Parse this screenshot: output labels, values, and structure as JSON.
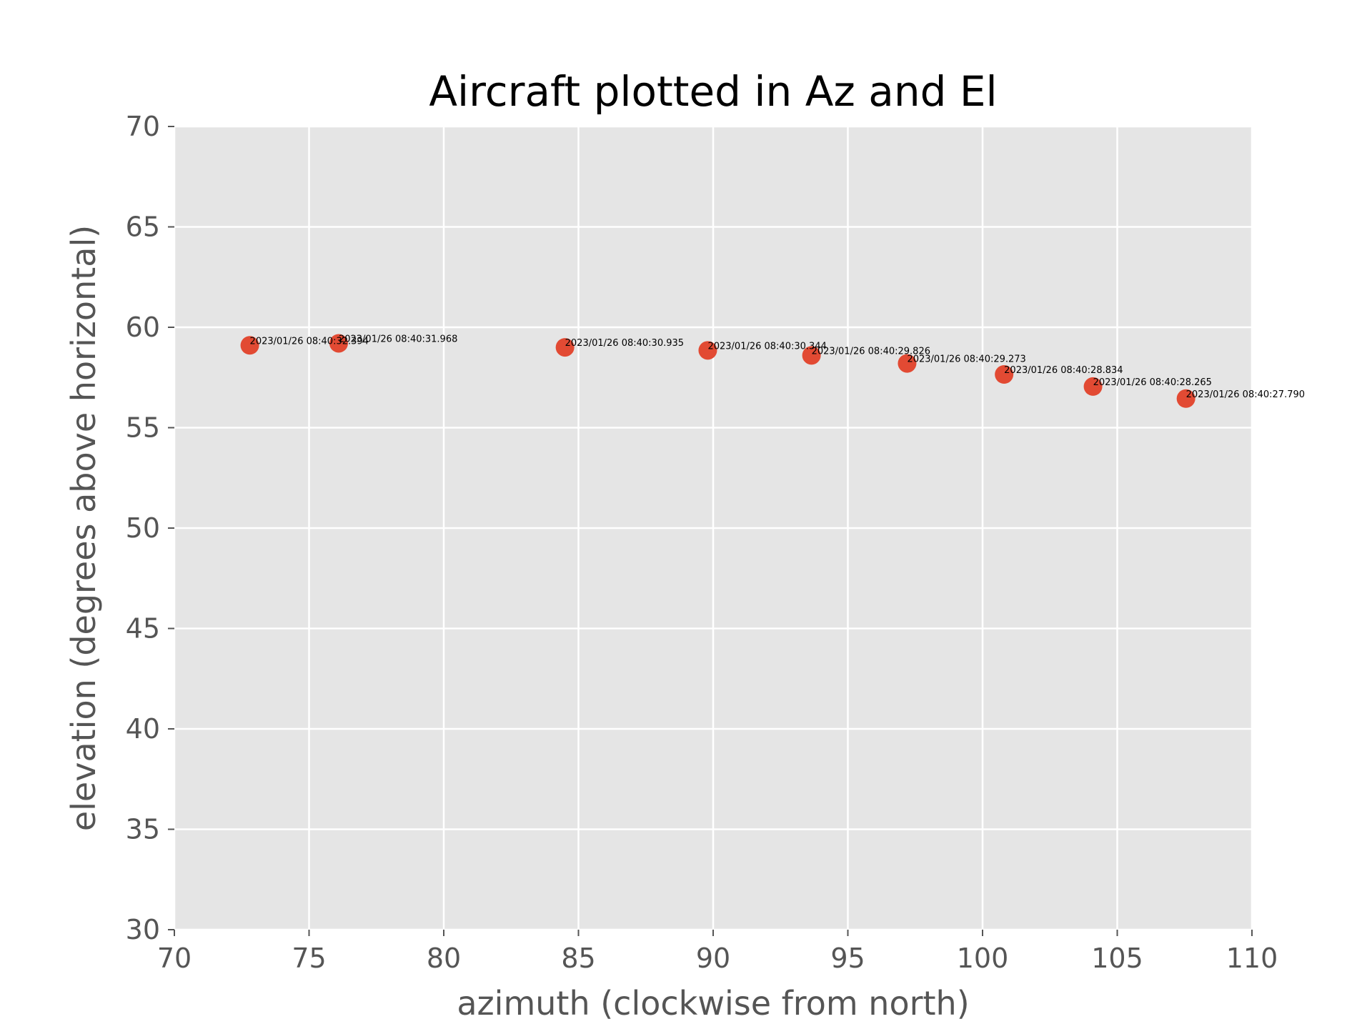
{
  "chart_data": {
    "type": "scatter",
    "title": "Aircraft plotted in Az and El",
    "xlabel": "azimuth (clockwise from north)",
    "ylabel": "elevation (degrees above horizontal)",
    "xlim": [
      70,
      110
    ],
    "ylim": [
      30,
      70
    ],
    "xticks": [
      70,
      75,
      80,
      85,
      90,
      95,
      100,
      105,
      110
    ],
    "yticks": [
      30,
      35,
      40,
      45,
      50,
      55,
      60,
      65,
      70
    ],
    "grid": true,
    "colors": {
      "plot_background": "#e5e5e5",
      "grid": "#ffffff",
      "marker": "#e24a33"
    },
    "points": [
      {
        "x": 72.8,
        "y": 59.1,
        "label": "2023/01/26 08:40:32.394"
      },
      {
        "x": 76.1,
        "y": 59.2,
        "label": "2023/01/26 08:40:31.968"
      },
      {
        "x": 84.5,
        "y": 59.0,
        "label": "2023/01/26 08:40:30.935"
      },
      {
        "x": 89.8,
        "y": 58.85,
        "label": "2023/01/26 08:40:30.344"
      },
      {
        "x": 93.65,
        "y": 58.6,
        "label": "2023/01/26 08:40:29.826"
      },
      {
        "x": 97.2,
        "y": 58.2,
        "label": "2023/01/26 08:40:29.273"
      },
      {
        "x": 100.8,
        "y": 57.65,
        "label": "2023/01/26 08:40:28.834"
      },
      {
        "x": 104.1,
        "y": 57.05,
        "label": "2023/01/26 08:40:28.265"
      },
      {
        "x": 107.55,
        "y": 56.45,
        "label": "2023/01/26 08:40:27.790"
      }
    ]
  }
}
